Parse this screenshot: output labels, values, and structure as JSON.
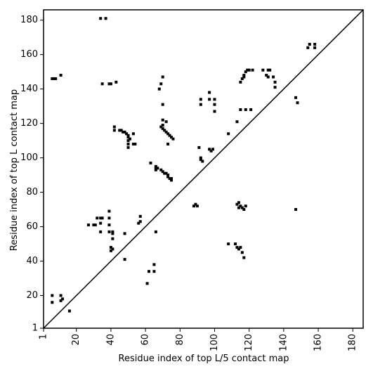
{
  "chart_data": {
    "type": "scatter",
    "x_label": "Residue index of top L/5 contact map",
    "y_label": "Residue index of top L contact map",
    "xlim": [
      1,
      186
    ],
    "ylim": [
      1,
      186
    ],
    "xticks": [
      1,
      20,
      40,
      60,
      80,
      100,
      120,
      140,
      160,
      180
    ],
    "yticks": [
      1,
      20,
      40,
      60,
      80,
      100,
      120,
      140,
      160,
      180
    ],
    "color": "#000000",
    "x": [
      6,
      7,
      8,
      11,
      34,
      37,
      35,
      39,
      40,
      43,
      42,
      42,
      45,
      46,
      47,
      48,
      49,
      50,
      50,
      51,
      50,
      50,
      50,
      53,
      53,
      54,
      63,
      66,
      66,
      67,
      66,
      69,
      70,
      71,
      72,
      73,
      73,
      74,
      75,
      75,
      69,
      70,
      71,
      72,
      73,
      74,
      75,
      76,
      70,
      72,
      70,
      73,
      68,
      69,
      70,
      70,
      88,
      89,
      90,
      91,
      92,
      92,
      93,
      92,
      92,
      97,
      97,
      100,
      100,
      100,
      97,
      98,
      99,
      108,
      113,
      115,
      118,
      121,
      115,
      116,
      117,
      117,
      118,
      119,
      120,
      122,
      128,
      130,
      131,
      131,
      132,
      134,
      135,
      135,
      147,
      148,
      154,
      155,
      158,
      158,
      6,
      6,
      11,
      11,
      12,
      16,
      27,
      30,
      31,
      32,
      34,
      35,
      34,
      34,
      39,
      39,
      39,
      39,
      41,
      41,
      41,
      40,
      41,
      40,
      48,
      48,
      56,
      57,
      57,
      61,
      62,
      65,
      65,
      66,
      108,
      112,
      113,
      114,
      115,
      116,
      117,
      113,
      114,
      115,
      116,
      117,
      118,
      114,
      147
    ],
    "y": [
      146,
      146,
      146,
      148,
      181,
      181,
      143,
      143,
      143,
      144,
      118,
      116,
      116,
      116,
      115,
      115,
      114,
      113,
      112,
      111,
      110,
      108,
      106,
      114,
      108,
      108,
      97,
      94,
      93,
      94,
      95,
      93,
      92,
      91,
      91,
      90,
      89,
      88,
      88,
      87,
      118,
      117,
      116,
      115,
      114,
      113,
      112,
      111,
      119,
      121,
      122,
      108,
      140,
      143,
      147,
      131,
      72,
      73,
      72,
      106,
      100,
      99,
      98,
      134,
      131,
      138,
      134,
      134,
      131,
      127,
      105,
      104,
      105,
      114,
      121,
      128,
      128,
      128,
      144,
      146,
      147,
      148,
      150,
      151,
      151,
      151,
      151,
      148,
      147,
      151,
      151,
      147,
      144,
      141,
      135,
      132,
      164,
      166,
      164,
      166,
      20,
      16,
      20,
      17,
      18,
      11,
      61,
      61,
      61,
      65,
      65,
      65,
      62,
      57,
      69,
      65,
      61,
      57,
      57,
      56,
      53,
      48,
      47,
      46,
      56,
      41,
      62,
      63,
      66,
      27,
      34,
      38,
      34,
      57,
      50,
      50,
      48,
      47,
      48,
      45,
      42,
      73,
      74,
      72,
      71,
      70,
      72,
      71,
      70
    ]
  }
}
